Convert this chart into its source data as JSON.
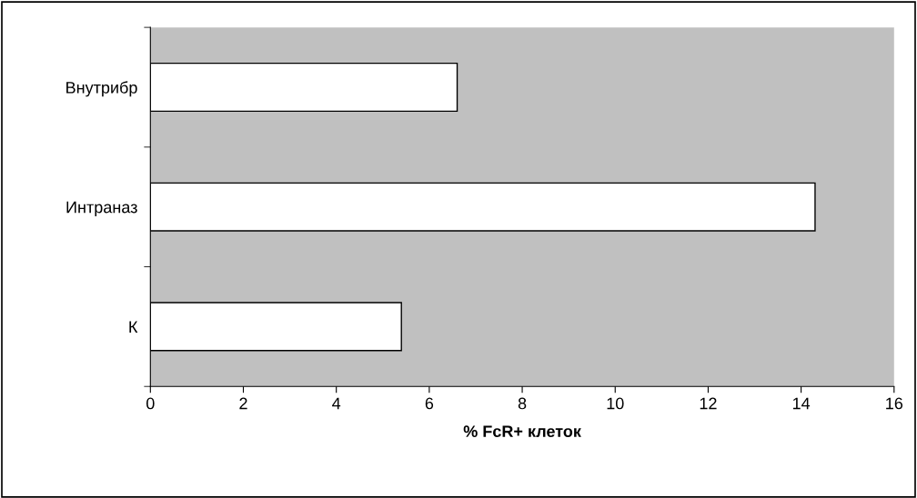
{
  "chart_data": {
    "type": "bar",
    "orientation": "horizontal",
    "xlabel": "% FcR+ клеток",
    "categories": [
      "Внутрибр",
      "Интраназ",
      "К"
    ],
    "values": [
      6.6,
      14.3,
      5.4
    ],
    "color": "#ffffff",
    "xlim": [
      0,
      16
    ],
    "xticks": [
      0,
      2,
      4,
      6,
      8,
      10,
      12,
      14,
      16
    ],
    "grid": false
  }
}
